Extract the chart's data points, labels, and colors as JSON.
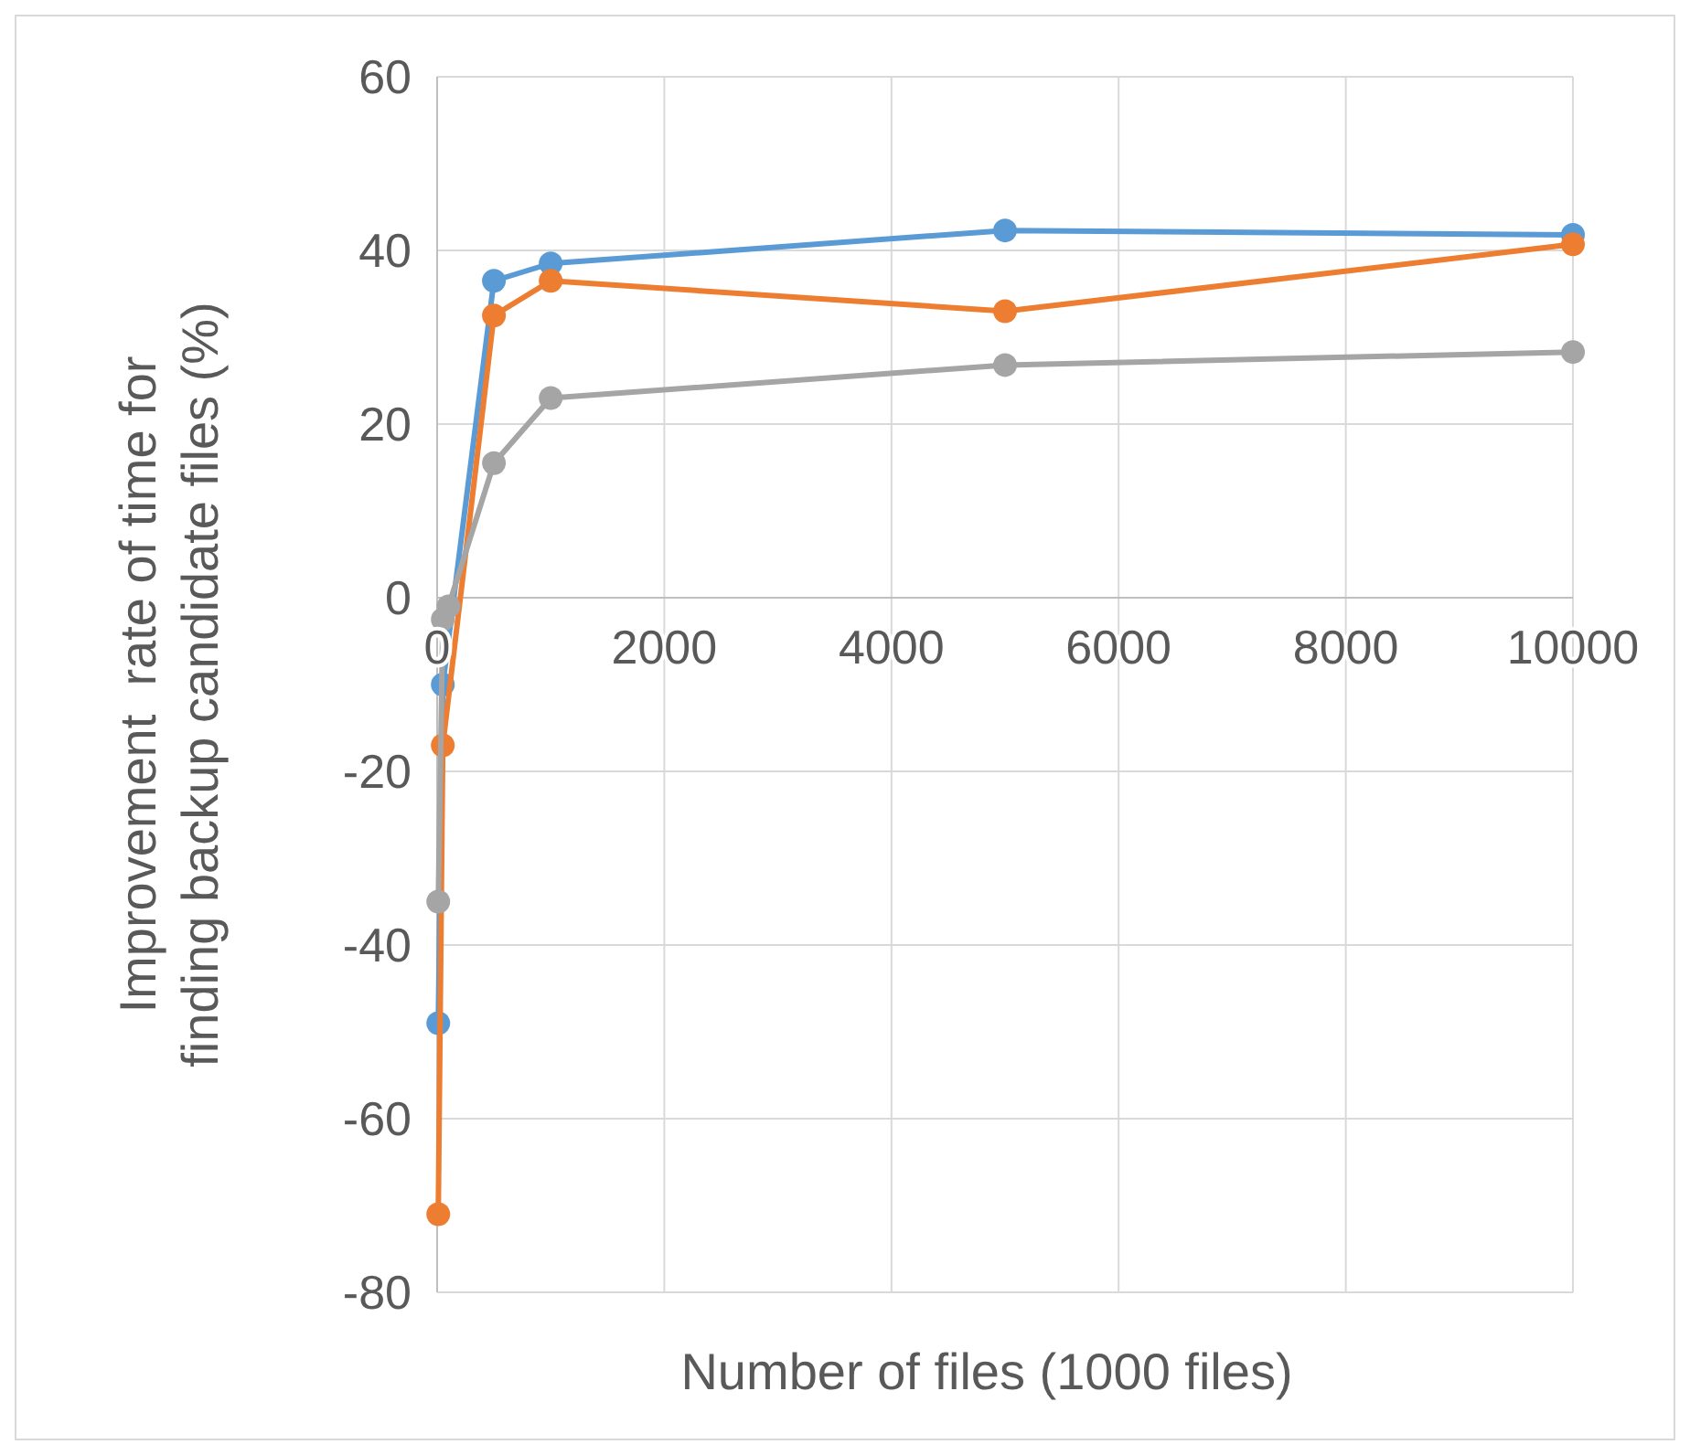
{
  "chart_data": {
    "type": "line",
    "xlabel": "Number of files (1000 files)",
    "ylabel": "Improvement  rate of time for finding backup candidate files (%)",
    "x": [
      10,
      50,
      100,
      500,
      1000,
      5000,
      10000
    ],
    "series": [
      {
        "color": "#5b9bd5",
        "x": [
          10,
          50,
          500,
          1000,
          5000,
          10000
        ],
        "values": [
          -49,
          -10,
          36.5,
          38.5,
          42.3,
          41.8
        ]
      },
      {
        "color": "#ed7d31",
        "x": [
          10,
          50,
          500,
          1000,
          5000,
          10000
        ],
        "values": [
          -71,
          -17,
          32.5,
          36.5,
          33,
          40.7
        ]
      },
      {
        "color": "#a5a5a5",
        "values": [
          -35,
          -2.5,
          -1,
          15.5,
          23,
          26.8,
          28.3
        ]
      }
    ],
    "xlim": [
      0,
      10000
    ],
    "xticks": [
      0,
      2000,
      4000,
      6000,
      8000,
      10000
    ],
    "ylim": [
      -80,
      60
    ],
    "yticks": [
      -80,
      -60,
      -40,
      -20,
      0,
      20,
      40,
      60
    ],
    "grid": true,
    "marker": "circle",
    "line_style": "solid"
  }
}
